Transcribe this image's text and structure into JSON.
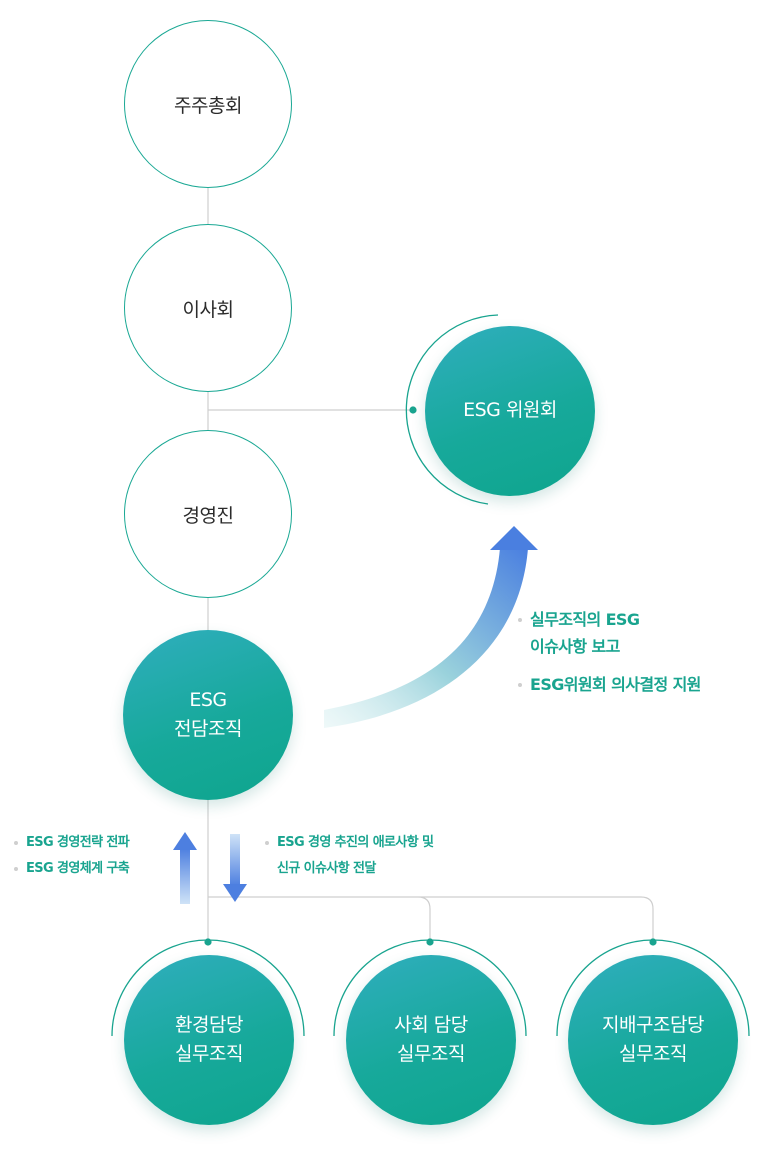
{
  "nodes": {
    "shareholders": "주주총회",
    "board": "이사회",
    "management": "경영진",
    "esg_committee": "ESG 위원회",
    "esg_dept_line1": "ESG",
    "esg_dept_line2": "전담조직",
    "env_line1": "환경담당",
    "env_line2": "실무조직",
    "social_line1": "사회 담당",
    "social_line2": "실무조직",
    "gov_line1": "지배구조담당",
    "gov_line2": "실무조직"
  },
  "annotations": {
    "report_line1": "실무조직의 ESG",
    "report_line2": "이슈사항 보고",
    "support": "ESG위원회 의사결정 지원",
    "strategy": "ESG 경영전략 전파",
    "system": "ESG 경영체계 구축",
    "deliver_line1": "ESG 경영 추진의 애로사항 및",
    "deliver_line2": "신규 이슈사항 전달"
  },
  "colors": {
    "accent": "#19a48f",
    "connector": "#cfcfcf",
    "arrow_blue": "#4d7fe0"
  }
}
